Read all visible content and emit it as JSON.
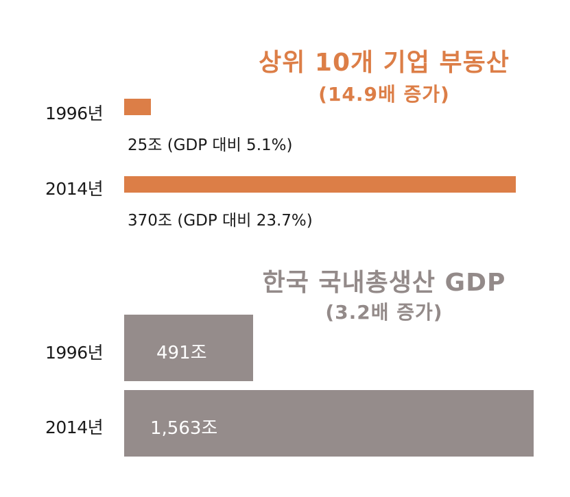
{
  "chart_data": [
    {
      "type": "bar",
      "orientation": "horizontal",
      "title": "상위 10개 기업 부동산",
      "subtitle": "(14.9배 증가)",
      "categories": [
        "1996년",
        "2014년"
      ],
      "values": [
        25,
        370
      ],
      "data_labels": [
        "25조 (GDP 대비 5.1%)",
        "370조 (GDP 대비 23.7%)"
      ],
      "color": "#dc7e47"
    },
    {
      "type": "bar",
      "orientation": "horizontal",
      "title": "한국 국내총생산 GDP",
      "subtitle": "(3.2배 증가)",
      "categories": [
        "1996년",
        "2014년"
      ],
      "values": [
        491,
        1563
      ],
      "data_labels": [
        "491조",
        "1,563조"
      ],
      "color": "#958c8b"
    }
  ]
}
